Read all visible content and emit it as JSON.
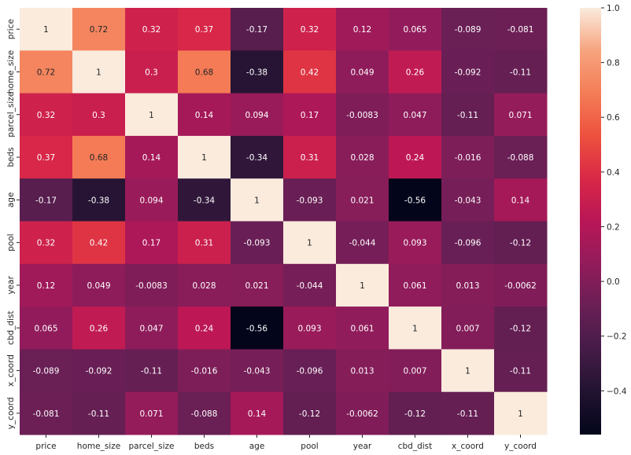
{
  "chart_data": {
    "type": "heatmap",
    "title": "",
    "xlabel": "",
    "ylabel": "",
    "x_labels": [
      "price",
      "home_size",
      "parcel_size",
      "beds",
      "age",
      "pool",
      "year",
      "cbd_dist",
      "x_coord",
      "y_coord"
    ],
    "y_labels": [
      "price",
      "home_size",
      "parcel_size",
      "beds",
      "age",
      "pool",
      "year",
      "cbd_dist",
      "x_coord",
      "y_coord"
    ],
    "values": [
      [
        1,
        0.72,
        0.32,
        0.37,
        -0.17,
        0.32,
        0.12,
        0.065,
        -0.089,
        -0.081
      ],
      [
        0.72,
        1,
        0.3,
        0.68,
        -0.38,
        0.42,
        0.049,
        0.26,
        -0.092,
        -0.11
      ],
      [
        0.32,
        0.3,
        1,
        0.14,
        0.094,
        0.17,
        -0.0083,
        0.047,
        -0.11,
        0.071
      ],
      [
        0.37,
        0.68,
        0.14,
        1,
        -0.34,
        0.31,
        0.028,
        0.24,
        -0.016,
        -0.088
      ],
      [
        -0.17,
        -0.38,
        0.094,
        -0.34,
        1,
        -0.093,
        0.021,
        -0.56,
        -0.043,
        0.14
      ],
      [
        0.32,
        0.42,
        0.17,
        0.31,
        -0.093,
        1,
        -0.044,
        0.093,
        -0.096,
        -0.12
      ],
      [
        0.12,
        0.049,
        -0.0083,
        0.028,
        0.021,
        -0.044,
        1,
        0.061,
        0.013,
        -0.0062
      ],
      [
        0.065,
        0.26,
        0.047,
        0.24,
        -0.56,
        0.093,
        0.061,
        1,
        0.007,
        -0.12
      ],
      [
        -0.089,
        -0.092,
        -0.11,
        -0.016,
        -0.043,
        -0.096,
        0.013,
        0.007,
        1,
        -0.11
      ],
      [
        -0.081,
        -0.11,
        0.071,
        -0.088,
        0.14,
        -0.12,
        -0.0062,
        -0.12,
        -0.11,
        1
      ]
    ],
    "colorbar": {
      "range": [
        -0.56,
        1.0
      ],
      "ticks": [
        -0.4,
        -0.2,
        0.0,
        0.2,
        0.4,
        0.6,
        0.8,
        1.0
      ],
      "tick_labels": [
        "−0.4",
        "−0.2",
        "0.0",
        "0.2",
        "0.4",
        "0.6",
        "0.8",
        "1.0"
      ],
      "colormap": "rocket"
    },
    "grid": false,
    "annotated": true
  }
}
